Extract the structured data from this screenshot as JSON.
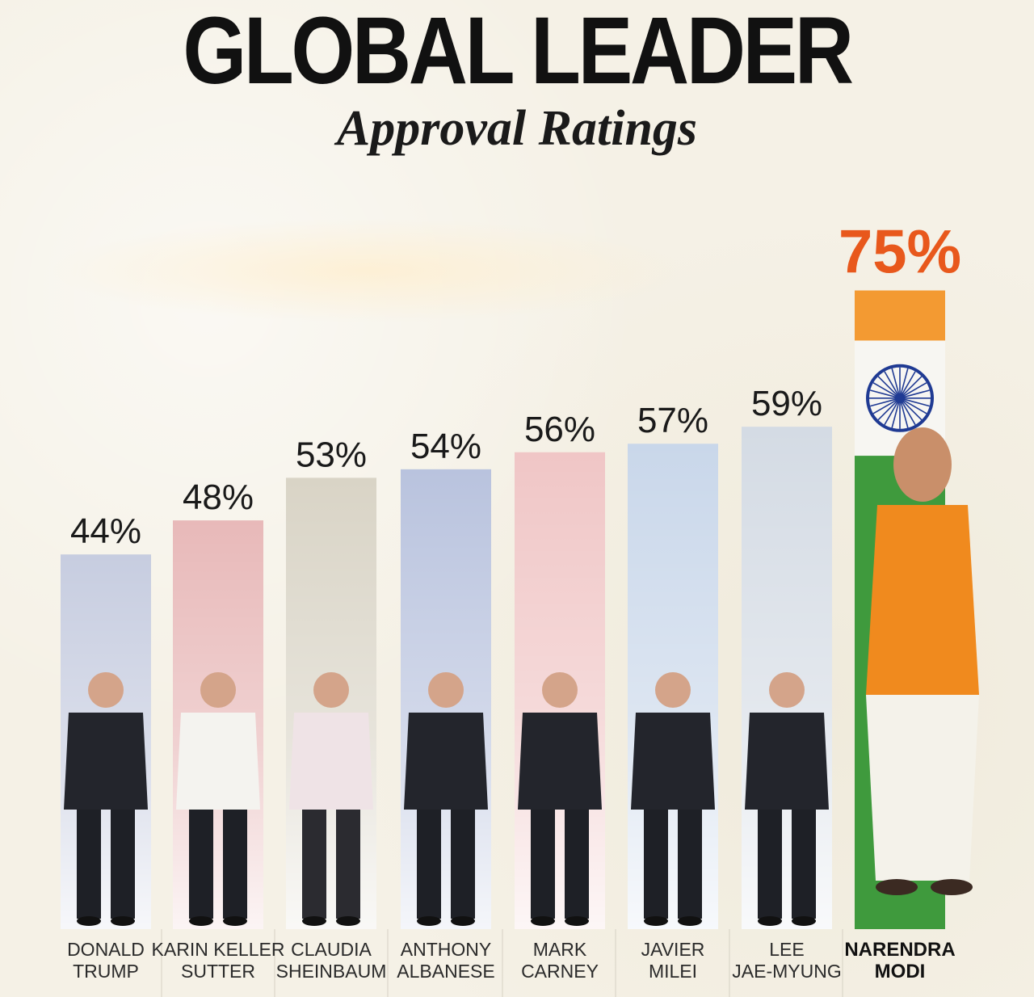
{
  "header": {
    "title": "GLOBAL LEADER",
    "subtitle": "Approval Ratings"
  },
  "chart_data": {
    "type": "bar",
    "title": "GLOBAL LEADER",
    "subtitle": "Approval Ratings",
    "categories": [
      "DONALD TRUMP",
      "KARIN KELLER SUTTER",
      "CLAUDIA SHEINBAUM",
      "ANTHONY ALBANESE",
      "MARK CARNEY",
      "JAVIER MILEI",
      "LEE JAE-MYUNG",
      "NARENDRA MODI"
    ],
    "name_lines": [
      [
        "DONALD",
        "TRUMP"
      ],
      [
        "KARIN KELLER",
        "SUTTER"
      ],
      [
        "CLAUDIA",
        "SHEINBAUM"
      ],
      [
        "ANTHONY",
        "ALBANESE"
      ],
      [
        "MARK",
        "CARNEY"
      ],
      [
        "JAVIER",
        "MILEI"
      ],
      [
        "LEE",
        "JAE-MYUNG"
      ],
      [
        "NARENDRA",
        "MODI"
      ]
    ],
    "values": [
      44,
      48,
      53,
      54,
      56,
      57,
      59,
      75
    ],
    "value_labels": [
      "44%",
      "48%",
      "53%",
      "54%",
      "56%",
      "57%",
      "59%",
      "75%"
    ],
    "highlight_index": 7,
    "colors": {
      "highlight": "#e8581c",
      "bars": [
        "#c7cde0",
        "#e8b9b9",
        "#d9d4c6",
        "#b9c3de",
        "#f0c6c6",
        "#c9d7ea",
        "#d4dbe4",
        "#f49a3a"
      ]
    },
    "xlabel": "",
    "ylabel": "",
    "ylim": [
      0,
      100
    ],
    "grid": false,
    "legend": "none"
  }
}
